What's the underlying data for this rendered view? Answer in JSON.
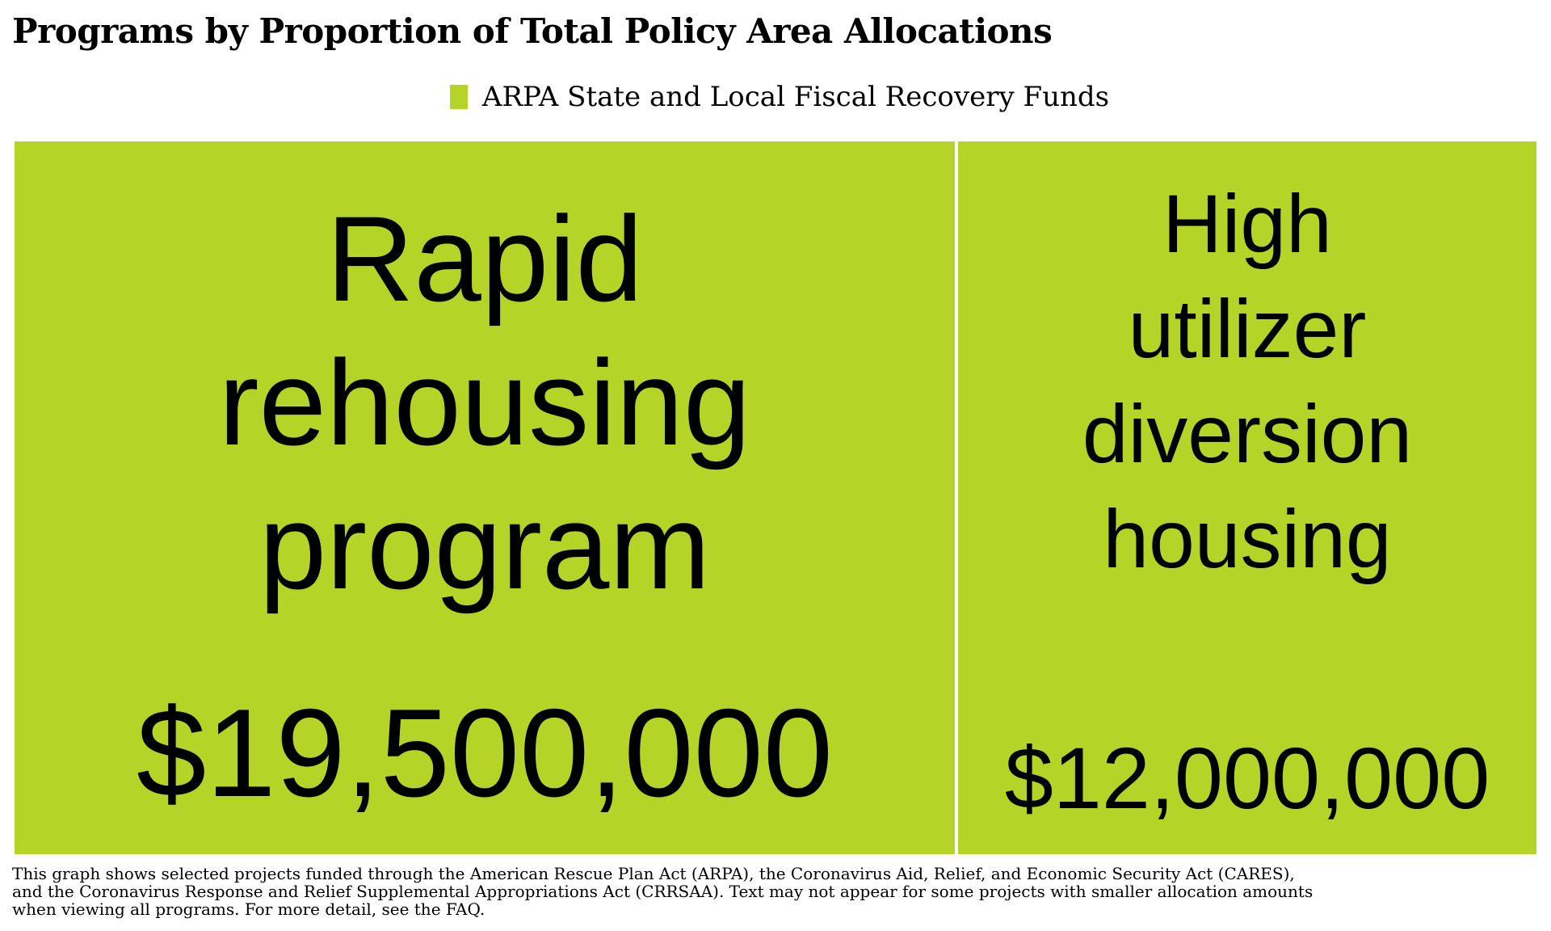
{
  "chart_data": {
    "type": "treemap",
    "title": "Programs by Proportion of Total Policy Area Allocations",
    "legend": {
      "placement": "top-center",
      "entries": [
        {
          "name": "ARPA State and Local Fiscal Recovery Funds",
          "color": "#b5d427"
        }
      ]
    },
    "items": [
      {
        "name_lines": [
          "Rapid",
          "rehousing",
          "program"
        ],
        "value": 19500000,
        "value_label": "$19,500,000",
        "series": "ARPA State and Local Fiscal Recovery Funds"
      },
      {
        "name_lines": [
          "High",
          "utilizer",
          "diversion",
          "housing"
        ],
        "value": 12000000,
        "value_label": "$12,000,000",
        "series": "ARPA State and Local Fiscal Recovery Funds"
      }
    ],
    "footnote": "This graph shows selected projects funded through the American Rescue Plan Act (ARPA), the Coronavirus Aid, Relief, and Economic Security Act (CARES),\nand the Coronavirus Response and Relief Supplemental Appropriations Act (CRRSAA). Text may not appear for some projects with smaller allocation amounts\n when viewing all programs. For more detail, see the FAQ."
  },
  "colors": {
    "tile": "#b5d427",
    "divider": "#ffffff",
    "text": "#000000"
  }
}
